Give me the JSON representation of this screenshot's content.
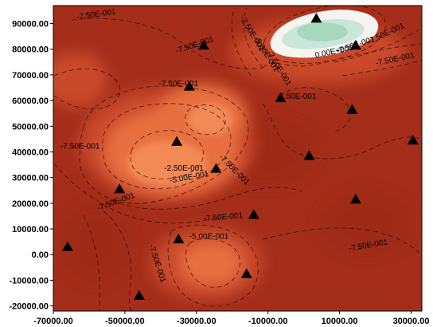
{
  "chart_data": {
    "type": "heatmap",
    "subtype": "filled-contour-map",
    "xlim": [
      -70000,
      33000
    ],
    "ylim": [
      -22000,
      97000
    ],
    "x_ticks": [
      "-70000.00",
      "-50000.00",
      "-30000.00",
      "-10000.00",
      "10000.00",
      "30000.00"
    ],
    "x_tick_values": [
      -70000,
      -50000,
      -30000,
      -10000,
      10000,
      30000
    ],
    "y_ticks": [
      "-20000.00",
      "-10000.00",
      "0.00",
      "10000.00",
      "20000.00",
      "30000.00",
      "40000.00",
      "50000.00",
      "60000.00",
      "70000.00",
      "80000.00",
      "90000.00"
    ],
    "y_tick_values": [
      -20000,
      -10000,
      0,
      10000,
      20000,
      30000,
      40000,
      50000,
      60000,
      70000,
      80000,
      90000
    ],
    "contour_levels": [
      -1.0,
      -0.75,
      -0.5,
      -0.25,
      0.0,
      0.25
    ],
    "colors": {
      "background": "#a52e1a",
      "level_low": "#9e2b17",
      "level_mid": "#c9482a",
      "level_high": "#e8703f",
      "peak": "#f28a55",
      "white_zone": "#f4f4f0",
      "green_zone": "#c9e6d8",
      "green_core": "#a9d8c0",
      "marker": "#000000"
    },
    "contour_labels": [
      {
        "text": "-7.50E-001",
        "x": -58000,
        "y": 93500,
        "rot": -8
      },
      {
        "text": "-7.50E-001",
        "x": -30500,
        "y": 81500,
        "rot": -18
      },
      {
        "text": "-2.50E-001",
        "x": -14500,
        "y": 86000,
        "rot": 58
      },
      {
        "text": "-5.00E-001",
        "x": -10500,
        "y": 78000,
        "rot": 58
      },
      {
        "text": "-7.50E-001",
        "x": -7000,
        "y": 72500,
        "rot": 58
      },
      {
        "text": "0.00E+000",
        "x": 8500,
        "y": 79000,
        "rot": -12
      },
      {
        "text": "-2.50E-001",
        "x": 14500,
        "y": 81500,
        "rot": -18
      },
      {
        "text": "-7.50E-001",
        "x": 23000,
        "y": 86000,
        "rot": -25
      },
      {
        "text": "-7.50E-001",
        "x": 25500,
        "y": 76000,
        "rot": -12
      },
      {
        "text": "-7.50E-001",
        "x": -35000,
        "y": 66500,
        "rot": 0
      },
      {
        "text": "-7.50E-001",
        "x": -2000,
        "y": 61500,
        "rot": 0
      },
      {
        "text": "-7.50E-001",
        "x": -62500,
        "y": 42000,
        "rot": 0
      },
      {
        "text": "-2.50E-001",
        "x": -33500,
        "y": 33500,
        "rot": 0
      },
      {
        "text": "-5.00E-001",
        "x": -32000,
        "y": 30000,
        "rot": -10
      },
      {
        "text": "-7.50E-001",
        "x": -19500,
        "y": 33000,
        "rot": 45
      },
      {
        "text": "-7.50E-001",
        "x": -52500,
        "y": 20500,
        "rot": -20
      },
      {
        "text": "-7.50E-001",
        "x": -22500,
        "y": 14500,
        "rot": -5
      },
      {
        "text": "-5.00E-001",
        "x": -26500,
        "y": 7000,
        "rot": 0
      },
      {
        "text": "-7.50E-001",
        "x": 18000,
        "y": 3500,
        "rot": -10
      },
      {
        "text": "-7.50E-001",
        "x": -41000,
        "y": -3500,
        "rot": 72
      }
    ],
    "markers": [
      {
        "x": 3500,
        "y": 92000
      },
      {
        "x": -28000,
        "y": 81500
      },
      {
        "x": 14500,
        "y": 81500
      },
      {
        "x": -32000,
        "y": 65500
      },
      {
        "x": -6500,
        "y": 61000
      },
      {
        "x": 13500,
        "y": 56500
      },
      {
        "x": -35500,
        "y": 44000
      },
      {
        "x": 1500,
        "y": 38500
      },
      {
        "x": 30500,
        "y": 44500
      },
      {
        "x": -24500,
        "y": 33500
      },
      {
        "x": -51500,
        "y": 25500
      },
      {
        "x": 14500,
        "y": 21500
      },
      {
        "x": -14000,
        "y": 15500
      },
      {
        "x": -35000,
        "y": 6000
      },
      {
        "x": -66000,
        "y": 3000
      },
      {
        "x": -16000,
        "y": -7500
      },
      {
        "x": -46000,
        "y": -16000
      }
    ]
  }
}
